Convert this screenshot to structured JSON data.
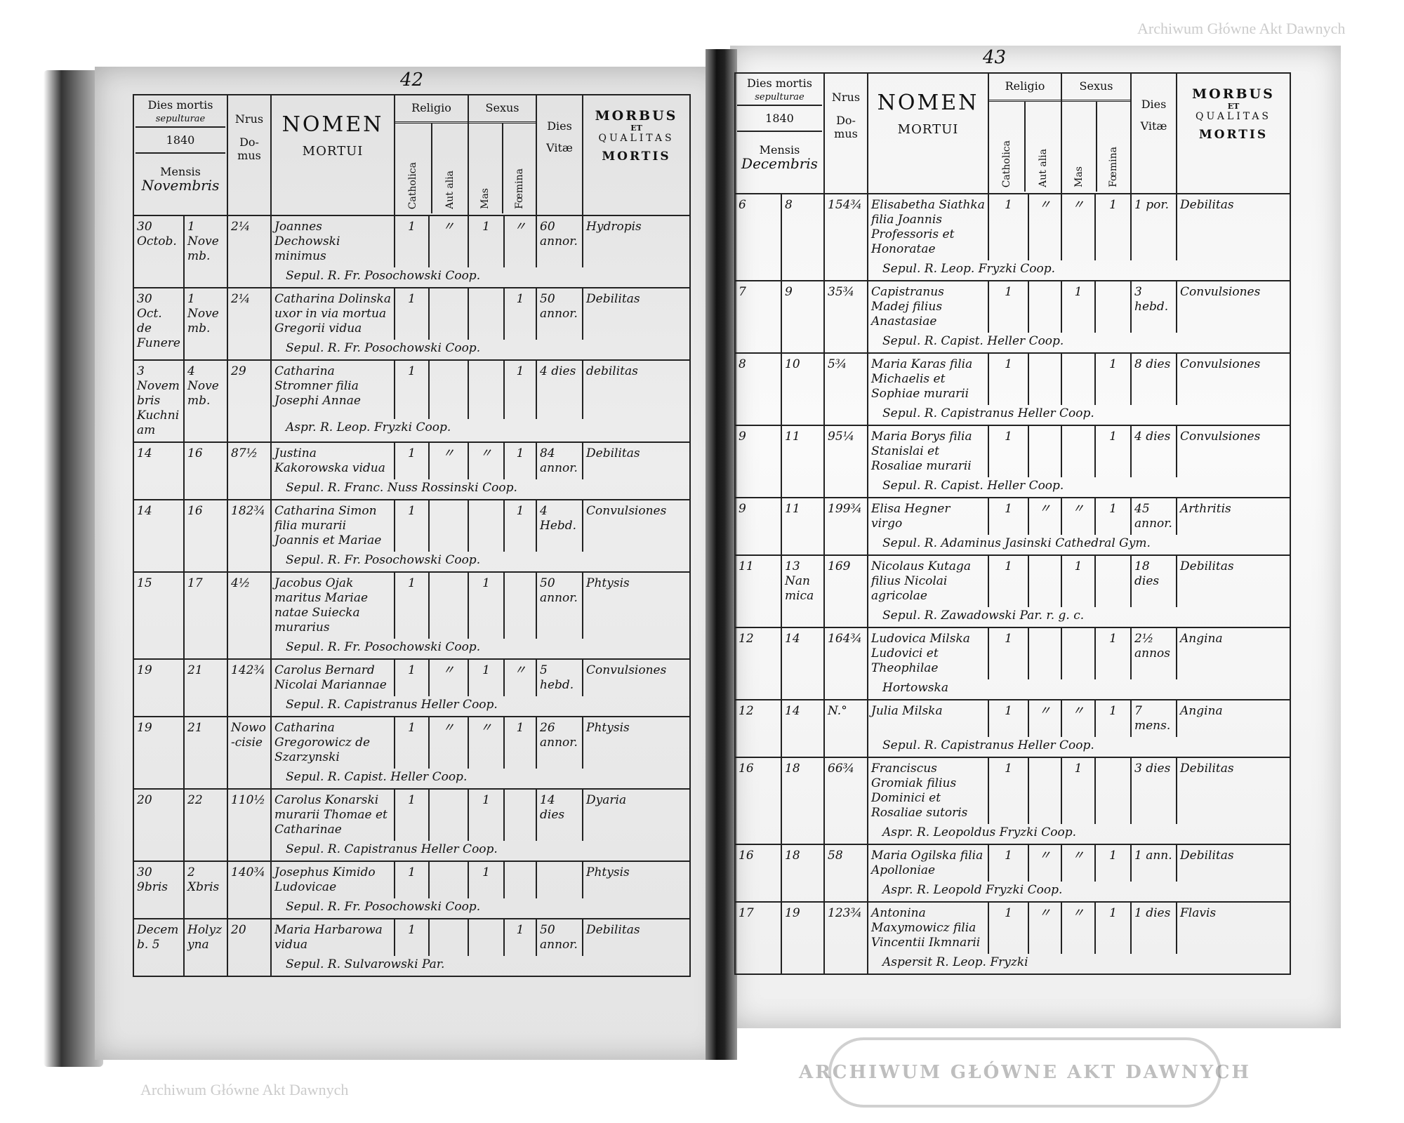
{
  "header": {
    "dies_mortis": "Dies mortis",
    "sepulturae": "sepulturae",
    "year": "1840",
    "mensis": "Mensis",
    "nrus": "Nrus",
    "domus": "Do-mus",
    "nomen": "NOMEN",
    "mortui": "MORTUI",
    "religio": "Religio",
    "catholica": "Catholica",
    "aut_alia": "Aut alia",
    "sexus": "Sexus",
    "mas": "Mas",
    "foemina": "Fœmina",
    "dies": "Dies",
    "vitae": "Vitæ",
    "morbus": "MORBUS",
    "et": "ET",
    "qualitas": "QUALITAS",
    "mortis": "MORTIS"
  },
  "left_page": {
    "page_number": "42",
    "month": "Novembris",
    "rows": [
      {
        "death": "30 Octob.",
        "burial": "1 Novemb.",
        "domus": "2¼",
        "name": "Joannes Dechowski minimus",
        "cath": "1",
        "alia": "〃",
        "mas": "1",
        "fem": "〃",
        "vitae": "60 annor.",
        "morbus": "Hydropis",
        "note": "Sepul. R. Fr. Posochowski Coop."
      },
      {
        "death": "30 Oct. de Funere",
        "burial": "1 Novemb.",
        "domus": "2¼",
        "name": "Catharina Dolinska uxor in via mortua Gregorii vidua",
        "cath": "1",
        "alia": "",
        "mas": "",
        "fem": "1",
        "vitae": "50 annor.",
        "morbus": "Debilitas",
        "note": "Sepul. R. Fr. Posochowski Coop."
      },
      {
        "death": "3 Novembris Kuchniam",
        "burial": "4 Novemb.",
        "domus": "29",
        "name": "Catharina Stromner filia Josephi Annae",
        "cath": "1",
        "alia": "",
        "mas": "",
        "fem": "1",
        "vitae": "4 dies",
        "morbus": "debilitas",
        "note": "Aspr. R. Leop. Fryzki Coop."
      },
      {
        "death": "14",
        "burial": "16",
        "domus": "87½",
        "name": "Justina Kakorowska vidua",
        "cath": "1",
        "alia": "〃",
        "mas": "〃",
        "fem": "1",
        "vitae": "84 annor.",
        "morbus": "Debilitas",
        "note": "Sepul. R. Franc. Nuss Rossinski Coop."
      },
      {
        "death": "14",
        "burial": "16",
        "domus": "182¾",
        "name": "Catharina Simon filia murarii Joannis et Mariae",
        "cath": "1",
        "alia": "",
        "mas": "",
        "fem": "1",
        "vitae": "4 Hebd.",
        "morbus": "Convulsiones",
        "note": "Sepul. R. Fr. Posochowski Coop."
      },
      {
        "death": "15",
        "burial": "17",
        "domus": "4½",
        "name": "Jacobus Ojak maritus Mariae natae Suiecka murarius",
        "cath": "1",
        "alia": "",
        "mas": "1",
        "fem": "",
        "vitae": "50 annor.",
        "morbus": "Phtysis",
        "note": "Sepul. R. Fr. Posochowski Coop."
      },
      {
        "death": "19",
        "burial": "21",
        "domus": "142¾",
        "name": "Carolus Bernard Nicolai Mariannae",
        "cath": "1",
        "alia": "〃",
        "mas": "1",
        "fem": "〃",
        "vitae": "5 hebd.",
        "morbus": "Convulsiones",
        "note": "Sepul. R. Capistranus Heller Coop."
      },
      {
        "death": "19",
        "burial": "21",
        "domus": "Nowo-cisie",
        "name": "Catharina Gregorowicz de Szarzynski",
        "cath": "1",
        "alia": "〃",
        "mas": "〃",
        "fem": "1",
        "vitae": "26 annor.",
        "morbus": "Phtysis",
        "note": "Sepul. R. Capist. Heller Coop."
      },
      {
        "death": "20",
        "burial": "22",
        "domus": "110½",
        "name": "Carolus Konarski murarii Thomae et Catharinae",
        "cath": "1",
        "alia": "",
        "mas": "1",
        "fem": "",
        "vitae": "14 dies",
        "morbus": "Dyaria",
        "note": "Sepul. R. Capistranus Heller Coop."
      },
      {
        "death": "30 9bris",
        "burial": "2 Xbris",
        "domus": "140¾",
        "name": "Josephus Kimido Ludovicae",
        "cath": "1",
        "alia": "",
        "mas": "1",
        "fem": "",
        "vitae": "",
        "morbus": "Phtysis",
        "note": "Sepul. R. Fr. Posochowski Coop."
      },
      {
        "death": "Decemb. 5",
        "burial": "Holyzyna",
        "domus": "20",
        "name": "Maria Harbarowa vidua",
        "cath": "1",
        "alia": "",
        "mas": "",
        "fem": "1",
        "vitae": "50 annor.",
        "morbus": "Debilitas",
        "note": "Sepul. R. Sulvarowski Par."
      }
    ]
  },
  "right_page": {
    "page_number": "43",
    "month": "Decembris",
    "rows": [
      {
        "death": "6",
        "burial": "8",
        "domus": "154¾",
        "name": "Elisabetha Siathka filia Joannis Professoris et Honoratae",
        "cath": "1",
        "alia": "〃",
        "mas": "〃",
        "fem": "1",
        "vitae": "1 por.",
        "morbus": "Debilitas",
        "note": "Sepul. R. Leop. Fryzki Coop."
      },
      {
        "death": "7",
        "burial": "9",
        "domus": "35¾",
        "name": "Capistranus Madej filius Anastasiae",
        "cath": "1",
        "alia": "",
        "mas": "1",
        "fem": "",
        "vitae": "3 hebd.",
        "morbus": "Convulsiones",
        "note": "Sepul. R. Capist. Heller Coop."
      },
      {
        "death": "8",
        "burial": "10",
        "domus": "5¾",
        "name": "Maria Karas filia Michaelis et Sophiae murarii",
        "cath": "1",
        "alia": "",
        "mas": "",
        "fem": "1",
        "vitae": "8 dies",
        "morbus": "Convulsiones",
        "note": "Sepul. R. Capistranus Heller Coop."
      },
      {
        "death": "9",
        "burial": "11",
        "domus": "95¼",
        "name": "Maria Borys filia Stanislai et Rosaliae murarii",
        "cath": "1",
        "alia": "",
        "mas": "",
        "fem": "1",
        "vitae": "4 dies",
        "morbus": "Convulsiones",
        "note": "Sepul. R. Capist. Heller Coop."
      },
      {
        "death": "9",
        "burial": "11",
        "domus": "199¾",
        "name": "Elisa Hegner virgo",
        "cath": "1",
        "alia": "〃",
        "mas": "〃",
        "fem": "1",
        "vitae": "45 annor.",
        "morbus": "Arthritis",
        "note": "Sepul. R. Adaminus Jasinski Cathedral Gym."
      },
      {
        "death": "11",
        "burial": "13 Nanmica",
        "domus": "169",
        "name": "Nicolaus Kutaga filius Nicolai agricolae",
        "cath": "1",
        "alia": "",
        "mas": "1",
        "fem": "",
        "vitae": "18 dies",
        "morbus": "Debilitas",
        "note": "Sepul. R. Zawadowski Par. r. g. c."
      },
      {
        "death": "12",
        "burial": "14",
        "domus": "164¾",
        "name": "Ludovica Milska Ludovici et Theophilae",
        "cath": "1",
        "alia": "",
        "mas": "",
        "fem": "1",
        "vitae": "2½ annos",
        "morbus": "Angina",
        "note": "Hortowska"
      },
      {
        "death": "12",
        "burial": "14",
        "domus": "N.°",
        "name": "Julia Milska",
        "cath": "1",
        "alia": "〃",
        "mas": "〃",
        "fem": "1",
        "vitae": "7 mens.",
        "morbus": "Angina",
        "note": "Sepul. R. Capistranus Heller Coop."
      },
      {
        "death": "16",
        "burial": "18",
        "domus": "66¾",
        "name": "Franciscus Gromiak filius Dominici et Rosaliae sutoris",
        "cath": "1",
        "alia": "",
        "mas": "1",
        "fem": "",
        "vitae": "3 dies",
        "morbus": "Debilitas",
        "note": "Aspr. R. Leopoldus Fryzki Coop."
      },
      {
        "death": "16",
        "burial": "18",
        "domus": "58",
        "name": "Maria Ogilska filia Apolloniae",
        "cath": "1",
        "alia": "〃",
        "mas": "〃",
        "fem": "1",
        "vitae": "1 ann.",
        "morbus": "Debilitas",
        "note": "Aspr. R. Leopold Fryzki Coop."
      },
      {
        "death": "17",
        "burial": "19",
        "domus": "123¾",
        "name": "Antonina Maxymowicz filia Vincentii Ikmnarii",
        "cath": "1",
        "alia": "〃",
        "mas": "〃",
        "fem": "1",
        "vitae": "1 dies",
        "morbus": "Flavis",
        "note": "Aspersit R. Leop. Fryzki"
      }
    ]
  },
  "watermark": "Archiwum Główne Akt Dawnych",
  "stamp": "ARCHIWUM GŁÓWNE AKT DAWNYCH"
}
